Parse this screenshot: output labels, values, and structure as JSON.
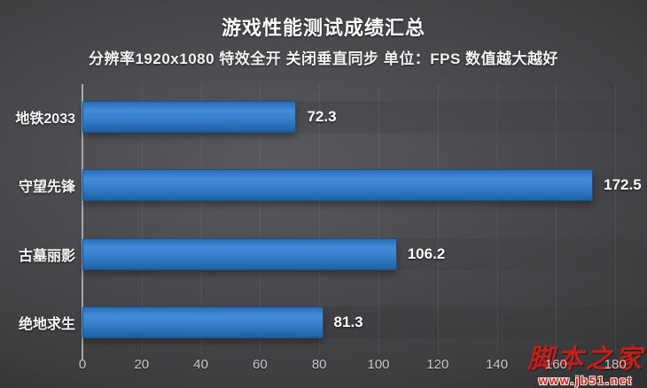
{
  "header": {
    "title": "游戏性能测试成绩汇总",
    "subtitle": "分辨率1920x1080 特效全开 关闭垂直同步 单位：FPS 数值越大越好"
  },
  "chart_data": {
    "type": "bar",
    "orientation": "horizontal",
    "title": "游戏性能测试成绩汇总",
    "subtitle": "分辨率1920x1080 特效全开 关闭垂直同步 单位：FPS 数值越大越好",
    "categories": [
      "地铁2033",
      "守望先锋",
      "古墓丽影",
      "绝地求生"
    ],
    "values": [
      72.3,
      172.5,
      106.2,
      81.3
    ],
    "value_labels": [
      "72.3",
      "172.5",
      "106.2",
      "81.3"
    ],
    "unit": "FPS",
    "xlim": [
      0,
      190
    ],
    "x_ticks": [
      0,
      20,
      40,
      60,
      80,
      100,
      120,
      140,
      160,
      180
    ],
    "legend": "none",
    "grid": "vertical-faint",
    "bar_color": "#3a83d0",
    "background_color": "#47484b",
    "text_color": "#ffffff"
  },
  "watermark": {
    "site_name": "脚本之家",
    "site_url": "www.jb51.net",
    "color": "#c2201d"
  }
}
